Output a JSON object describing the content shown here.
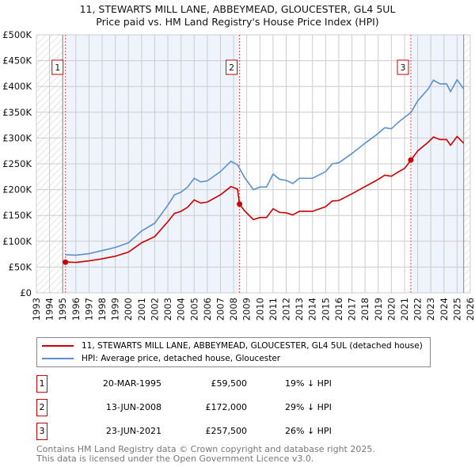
{
  "chart_data": {
    "type": "line",
    "title": "11, STEWARTS MILL LANE, ABBEYMEAD, GLOUCESTER, GL4 5UL",
    "subtitle": "Price paid vs. HM Land Registry's House Price Index (HPI)",
    "xlim": [
      1993,
      2026
    ],
    "ylim": [
      0,
      500000
    ],
    "yticks": [
      0,
      50000,
      100000,
      150000,
      200000,
      250000,
      300000,
      350000,
      400000,
      450000,
      500000
    ],
    "ytick_labels": [
      "£0",
      "£50K",
      "£100K",
      "£150K",
      "£200K",
      "£250K",
      "£300K",
      "£350K",
      "£400K",
      "£450K",
      "£500K"
    ],
    "xticks": [
      "1993",
      "1994",
      "1995",
      "1996",
      "1997",
      "1998",
      "1999",
      "2000",
      "2001",
      "2002",
      "2003",
      "2004",
      "2005",
      "2006",
      "2007",
      "2008",
      "2009",
      "2010",
      "2011",
      "2012",
      "2013",
      "2014",
      "2015",
      "2016",
      "2017",
      "2018",
      "2019",
      "2020",
      "2021",
      "2022",
      "2023",
      "2024",
      "2025",
      "2026"
    ],
    "grid": true,
    "series": [
      {
        "name": "11, STEWARTS MILL LANE, ABBEYMEAD, GLOUCESTER, GL4 5UL (detached house)",
        "color": "#cc0000",
        "x": [
          1995.2,
          1996,
          1997,
          1998,
          1999,
          2000,
          2001,
          2002,
          2003,
          2003.5,
          2004,
          2004.5,
          2005,
          2005.5,
          2006,
          2007,
          2007.8,
          2008.3,
          2008.45,
          2008.8,
          2009.5,
          2010,
          2010.5,
          2011,
          2011.5,
          2012,
          2012.5,
          2013,
          2014,
          2015,
          2015.5,
          2016,
          2017,
          2018,
          2018.8,
          2019.5,
          2020,
          2020.5,
          2021,
          2021.5,
          2022,
          2022.8,
          2023.2,
          2023.7,
          2024.2,
          2024.5,
          2025,
          2025.5
        ],
        "y": [
          60000,
          59000,
          62000,
          66000,
          71000,
          79000,
          97000,
          109000,
          138000,
          154000,
          158000,
          166000,
          180000,
          174000,
          176000,
          190000,
          206000,
          201000,
          172000,
          160000,
          142000,
          146000,
          146000,
          163000,
          156000,
          155000,
          151000,
          158000,
          158000,
          167000,
          178000,
          179000,
          192000,
          206000,
          217000,
          228000,
          226000,
          234000,
          241000,
          257500,
          275000,
          292000,
          302000,
          297000,
          297000,
          286000,
          303000,
          290000
        ]
      },
      {
        "name": "HPI: Average price, detached house, Gloucester",
        "color": "#5b8fd0",
        "x": [
          1995.2,
          1996,
          1997,
          1998,
          1999,
          2000,
          2001,
          2002,
          2003,
          2003.5,
          2004,
          2004.5,
          2005,
          2005.5,
          2006,
          2007,
          2007.8,
          2008.3,
          2008.8,
          2009.5,
          2010,
          2010.5,
          2011,
          2011.5,
          2012,
          2012.5,
          2013,
          2014,
          2015,
          2015.5,
          2016,
          2017,
          2018,
          2018.8,
          2019.5,
          2020,
          2020.5,
          2021,
          2021.5,
          2022,
          2022.8,
          2023.2,
          2023.7,
          2024.2,
          2024.5,
          2025,
          2025.5
        ],
        "y": [
          74000,
          73000,
          76000,
          82000,
          88000,
          97000,
          120000,
          135000,
          170000,
          190000,
          195000,
          205000,
          222000,
          215000,
          217000,
          235000,
          255000,
          248000,
          225000,
          200000,
          205000,
          205000,
          230000,
          220000,
          218000,
          212000,
          222000,
          222000,
          235000,
          250000,
          252000,
          270000,
          290000,
          305000,
          320000,
          318000,
          330000,
          340000,
          350000,
          372000,
          395000,
          412000,
          405000,
          405000,
          390000,
          413000,
          395000
        ]
      }
    ],
    "sales": [
      {
        "label": "1",
        "x": 1995.21,
        "y": 59500,
        "date": "20-MAR-1995",
        "price": "£59,500",
        "hpi": "19% ↓ HPI"
      },
      {
        "label": "2",
        "x": 2008.45,
        "y": 172000,
        "date": "13-JUN-2008",
        "price": "£172,000",
        "hpi": "29% ↓ HPI"
      },
      {
        "label": "3",
        "x": 2021.48,
        "y": 257500,
        "date": "23-JUN-2021",
        "price": "£257,500",
        "hpi": "26% ↓ HPI"
      }
    ]
  },
  "footer": [
    "Contains HM Land Registry data © Crown copyright and database right 2025.",
    "This data is licensed under the Open Government Licence v3.0."
  ]
}
